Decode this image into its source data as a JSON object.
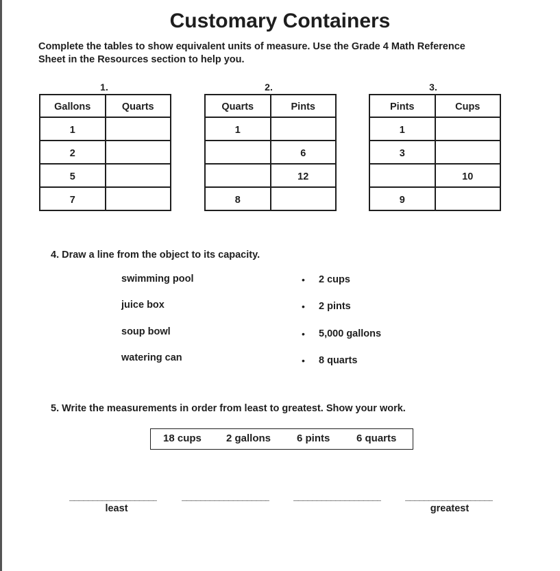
{
  "title": "Customary Containers",
  "instructions": [
    "Complete the tables to show equivalent units of measure. Use the Grade 4 Math Reference",
    "Sheet in the Resources section to help you."
  ],
  "tables": [
    {
      "label": "1.",
      "headers": [
        "Gallons",
        "Quarts"
      ],
      "rows": [
        [
          "1",
          ""
        ],
        [
          "2",
          ""
        ],
        [
          "5",
          ""
        ],
        [
          "7",
          ""
        ]
      ]
    },
    {
      "label": "2.",
      "headers": [
        "Quarts",
        "Pints"
      ],
      "rows": [
        [
          "1",
          ""
        ],
        [
          "",
          "6"
        ],
        [
          "",
          "12"
        ],
        [
          "8",
          ""
        ]
      ]
    },
    {
      "label": "3.",
      "headers": [
        "Pints",
        "Cups"
      ],
      "rows": [
        [
          "1",
          ""
        ],
        [
          "3",
          ""
        ],
        [
          "",
          "10"
        ],
        [
          "9",
          ""
        ]
      ]
    }
  ],
  "q4": {
    "prompt": "4.  Draw a line from the object to its capacity.",
    "objects": [
      "swimming pool",
      "juice box",
      "soup bowl",
      "watering can"
    ],
    "bullet": "•",
    "capacities": [
      "2 cups",
      "2 pints",
      "5,000 gallons",
      "8 quarts"
    ]
  },
  "q5": {
    "prompt": "5.  Write the measurements in order from least to greatest. Show your work.",
    "measurements": [
      "18 cups",
      "2 gallons",
      "6 pints",
      "6 quarts"
    ],
    "blank": "______________________",
    "least": "least",
    "greatest": "greatest"
  }
}
